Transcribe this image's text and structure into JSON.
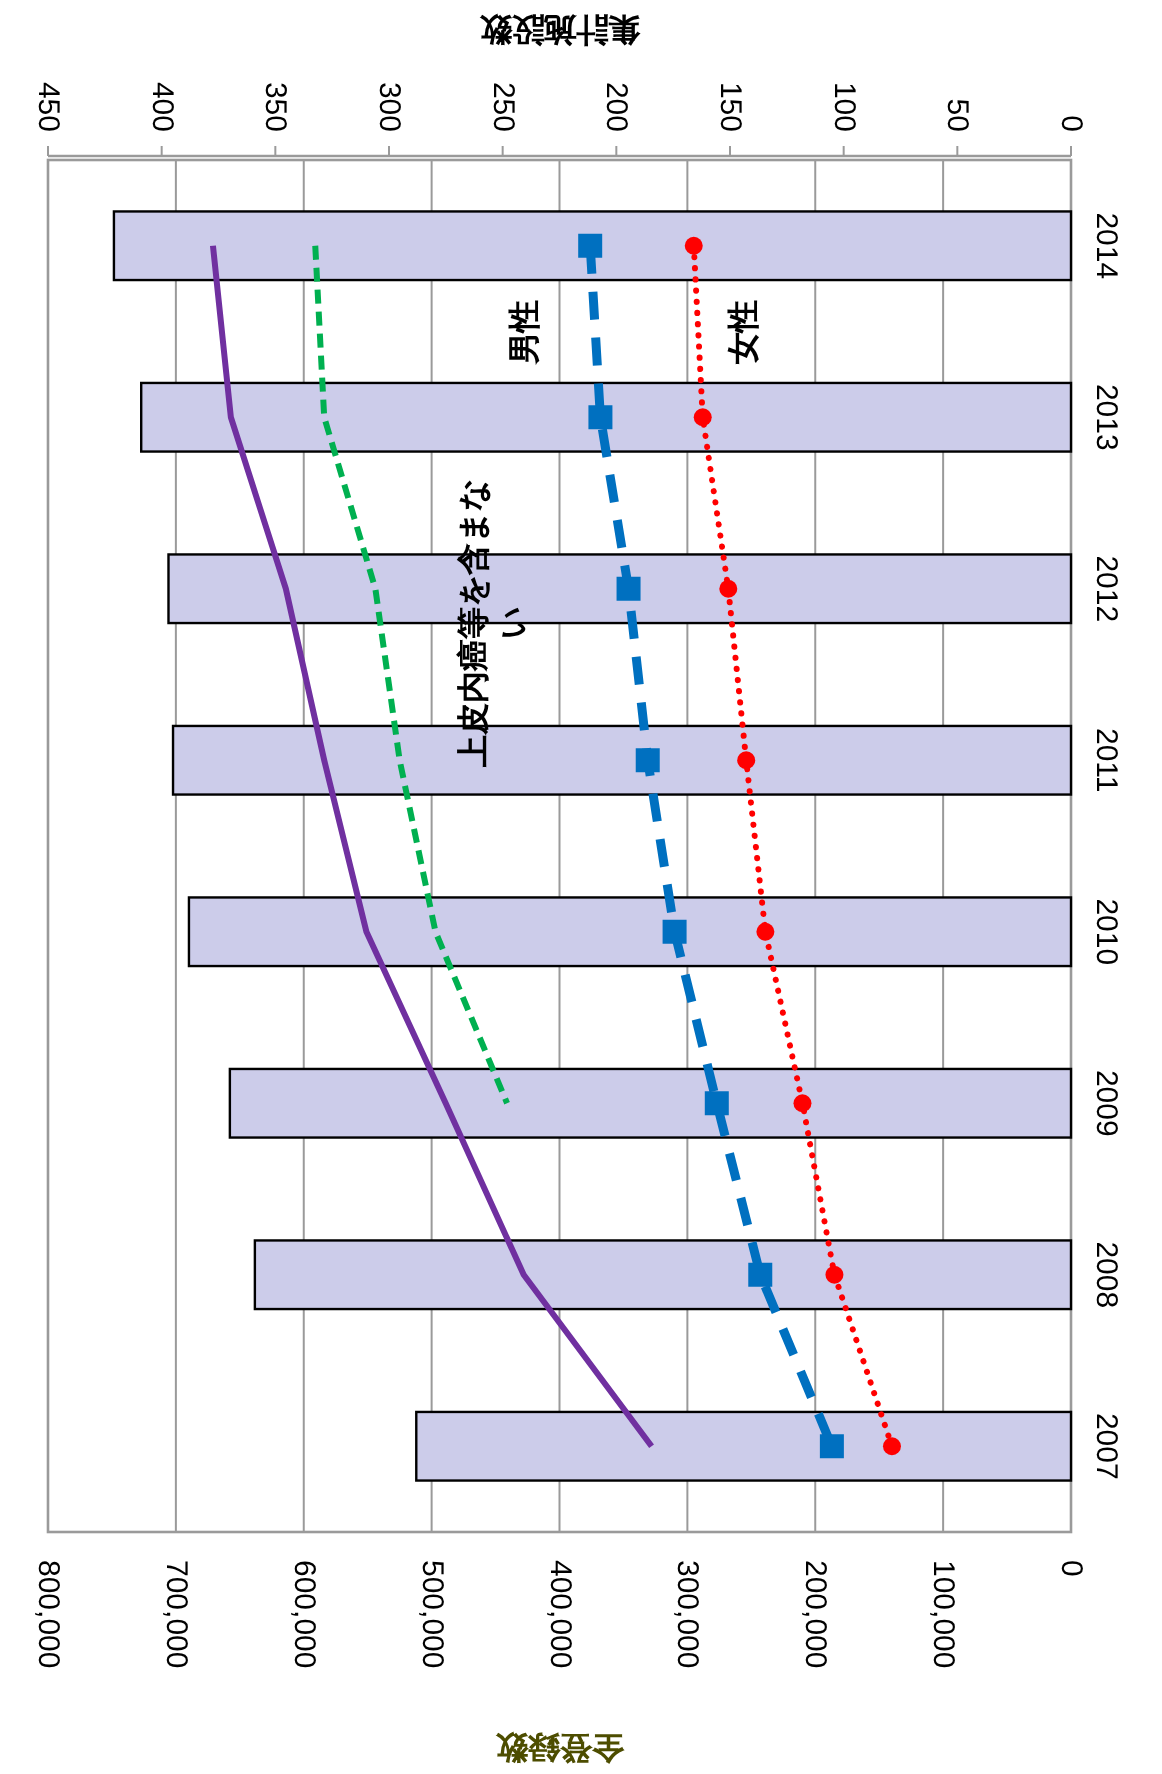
{
  "chart_data": {
    "type": "bar",
    "orientation": "horizontal",
    "xlabel": "全登録数",
    "x2label": "集計施設数",
    "categories": [
      "2014",
      "2013",
      "2012",
      "2011",
      "2010",
      "2009",
      "2008",
      "2007"
    ],
    "xlim": [
      800000,
      0
    ],
    "xticks": [
      {
        "value": 800000,
        "label": "800,000"
      },
      {
        "value": 700000,
        "label": "700,000"
      },
      {
        "value": 600000,
        "label": "600,000"
      },
      {
        "value": 500000,
        "label": "500,000"
      },
      {
        "value": 400000,
        "label": "400,000"
      },
      {
        "value": 300000,
        "label": "300,000"
      },
      {
        "value": 200000,
        "label": "200,000"
      },
      {
        "value": 100000,
        "label": "100,000"
      },
      0
    ],
    "x2lim": [
      450,
      0
    ],
    "x2ticks": [
      450,
      400,
      350,
      300,
      250,
      200,
      150,
      100,
      50,
      0
    ],
    "grid": "x",
    "series": [
      {
        "axis": "x2",
        "color": "#ccccea",
        "values": [
          421,
          409,
          397,
          395,
          388,
          370,
          359,
          288
        ]
      },
      {
        "type": "line",
        "color": "#7030a0",
        "marker": "none",
        "line_style": "solid",
        "values": [
          671000,
          657000,
          614000,
          584000,
          551000,
          489000,
          428000,
          328000
        ]
      },
      {
        "type": "line",
        "name": "上皮内癌等を含まない",
        "color": "#00b050",
        "marker": "none",
        "line_style": "dashed",
        "values": [
          591000,
          584000,
          544000,
          525000,
          497000,
          441000,
          null,
          null
        ]
      },
      {
        "type": "line",
        "name": "男性",
        "color": "#0070c0",
        "marker": "square",
        "line_style": "dashed",
        "values": [
          376000,
          368000,
          346000,
          331000,
          310000,
          277000,
          243000,
          187000
        ]
      },
      {
        "type": "line",
        "name": "女性",
        "color": "#ff0000",
        "marker": "circle",
        "line_style": "dotted",
        "values": [
          295000,
          288000,
          268000,
          254000,
          239000,
          210000,
          185000,
          140000
        ]
      }
    ]
  }
}
